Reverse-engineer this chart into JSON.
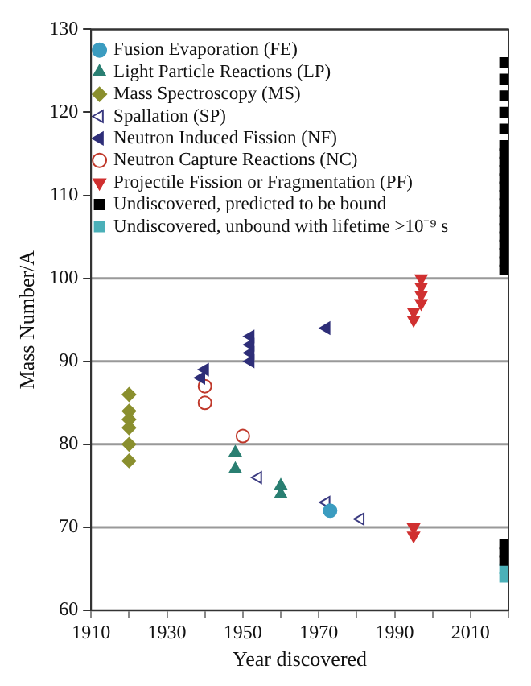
{
  "chart_data": {
    "type": "scatter",
    "xlabel": "Year discovered",
    "ylabel": "Mass Number/A",
    "xlim": [
      1910,
      2020
    ],
    "xticks": [
      1910,
      {
        "value": 1920,
        "label": null
      },
      1930,
      {
        "value": 1940,
        "label": null
      },
      1950,
      {
        "value": 1960,
        "label": null
      },
      1970,
      {
        "value": 1980,
        "label": null
      },
      1990,
      {
        "value": 2000,
        "label": null
      },
      2010,
      {
        "value": 2020,
        "label": null
      }
    ],
    "ylim": [
      60,
      130
    ],
    "yticks": [
      60,
      70,
      80,
      90,
      100,
      110,
      120,
      130
    ],
    "grid": "y",
    "legend": "top left",
    "series": [
      {
        "name": "Fusion Evaporation (FE)",
        "color": "#3b9cc0",
        "marker": "circle",
        "x": [
          1973
        ],
        "values": [
          72
        ]
      },
      {
        "name": "Light Particle Reactions (LP)",
        "color": "#2a7f72",
        "marker": "triangle",
        "x": [
          1948,
          1948,
          1960,
          1960
        ],
        "values": [
          79,
          77,
          75,
          74
        ]
      },
      {
        "name": "Mass Spectroscopy (MS)",
        "color": "#8a8f2e",
        "marker": "diamond",
        "x": [
          1920,
          1920,
          1920,
          1920,
          1920,
          1920
        ],
        "values": [
          86,
          84,
          83,
          82,
          80,
          78
        ]
      },
      {
        "name": "Spallation (SP)",
        "color": "#3a3a80",
        "marker": "triangle",
        "x": [
          1954,
          1972,
          1981
        ],
        "values": [
          76,
          73,
          71
        ]
      },
      {
        "name": "Neutron Induced Fission (NF)",
        "color": "#2e2e78",
        "marker": "triangle",
        "x": [
          1939,
          1940,
          1952,
          1952,
          1952,
          1952,
          1972
        ],
        "values": [
          88,
          89,
          90,
          91,
          92,
          93,
          94
        ]
      },
      {
        "name": "Neutron Capture Reactions (NC)",
        "color": "#c0392b",
        "marker": "circle",
        "x": [
          1940,
          1940,
          1950
        ],
        "values": [
          87,
          85,
          81
        ]
      },
      {
        "name": "Projectile Fission or Fragmentation (PF)",
        "color": "#d03030",
        "marker": "triangle",
        "x": [
          1995,
          1995,
          1997,
          1997,
          1997,
          1997,
          1995,
          1995
        ],
        "values": [
          96,
          95,
          100,
          99,
          98,
          97,
          70,
          69
        ]
      },
      {
        "name": "Undiscovered, predicted to be bound",
        "color": "#000000",
        "marker": "square",
        "x": [
          2019,
          2019,
          2019,
          2019,
          2019,
          2019,
          2019,
          2019,
          2019,
          2019,
          2019,
          2019,
          2019,
          2019,
          2019,
          2019,
          2019,
          2019,
          2019,
          2019,
          2019,
          2019,
          2019,
          2019
        ],
        "values": [
          126,
          124,
          122,
          120,
          118,
          116,
          115,
          114,
          113,
          112,
          111,
          110,
          109,
          108,
          107,
          106,
          105,
          104,
          103,
          102,
          101,
          68,
          67,
          66
        ]
      },
      {
        "name": "Undiscovered, unbound with lifetime >10⁻⁹ s",
        "color": "#4bb0b8",
        "marker": "square",
        "x": [
          2019,
          2019
        ],
        "values": [
          65,
          64
        ]
      }
    ]
  }
}
